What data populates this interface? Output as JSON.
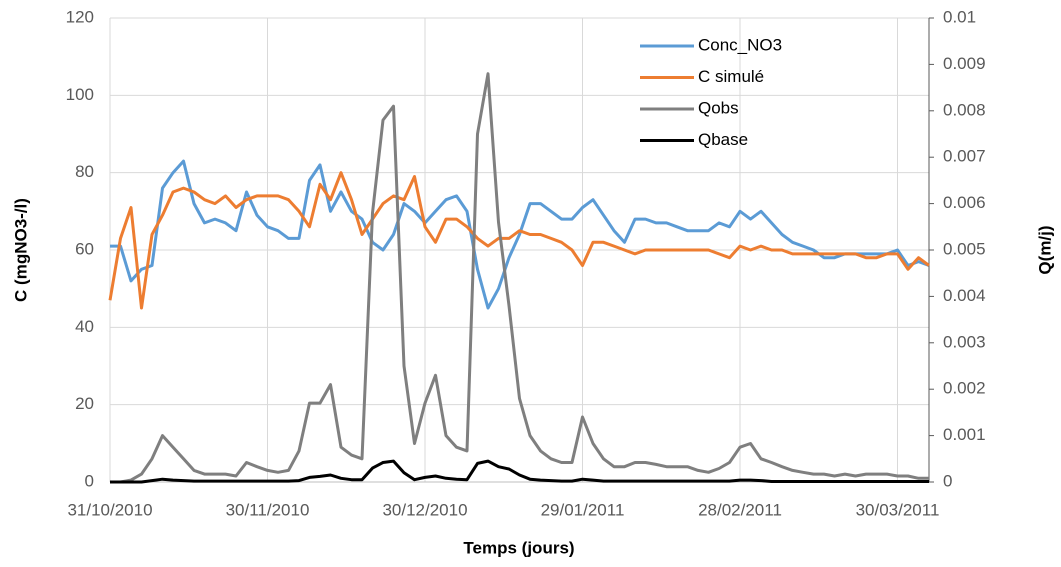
{
  "chart_data": {
    "type": "line",
    "xlabel": "Temps (jours)",
    "ylabel": "C (mgNO3-/l)",
    "y2label": "Q(m/j)",
    "x": [
      "31/10/2010",
      "02/11/2010",
      "04/11/2010",
      "06/11/2010",
      "08/11/2010",
      "10/11/2010",
      "12/11/2010",
      "14/11/2010",
      "16/11/2010",
      "18/11/2010",
      "20/11/2010",
      "22/11/2010",
      "24/11/2010",
      "26/11/2010",
      "28/11/2010",
      "30/11/2010",
      "02/12/2010",
      "04/12/2010",
      "06/12/2010",
      "08/12/2010",
      "10/12/2010",
      "12/12/2010",
      "14/12/2010",
      "16/12/2010",
      "18/12/2010",
      "20/12/2010",
      "22/12/2010",
      "24/12/2010",
      "26/12/2010",
      "28/12/2010",
      "30/12/2010",
      "01/01/2011",
      "03/01/2011",
      "05/01/2011",
      "07/01/2011",
      "09/01/2011",
      "11/01/2011",
      "13/01/2011",
      "15/01/2011",
      "17/01/2011",
      "19/01/2011",
      "21/01/2011",
      "23/01/2011",
      "25/01/2011",
      "27/01/2011",
      "29/01/2011",
      "31/01/2011",
      "02/02/2011",
      "04/02/2011",
      "06/02/2011",
      "08/02/2011",
      "10/02/2011",
      "12/02/2011",
      "14/02/2011",
      "16/02/2011",
      "18/02/2011",
      "20/02/2011",
      "22/02/2011",
      "24/02/2011",
      "26/02/2011",
      "28/02/2011",
      "02/03/2011",
      "04/03/2011",
      "06/03/2011",
      "08/03/2011",
      "10/03/2011",
      "12/03/2011",
      "14/03/2011",
      "16/03/2011",
      "18/03/2011",
      "20/03/2011",
      "22/03/2011",
      "24/03/2011",
      "26/03/2011",
      "28/03/2011",
      "30/03/2011",
      "01/04/2011",
      "03/04/2011",
      "05/04/2011"
    ],
    "xlim": [
      "31/10/2010",
      "05/04/2011"
    ],
    "xticks": [
      "31/10/2010",
      "30/11/2010",
      "30/12/2010",
      "29/01/2011",
      "28/02/2011",
      "30/03/2011"
    ],
    "ylim": [
      0,
      120
    ],
    "yticks": [
      0,
      20,
      40,
      60,
      80,
      100,
      120
    ],
    "y2lim": [
      0,
      0.01
    ],
    "y2ticks": [
      0,
      0.001,
      0.002,
      0.003,
      0.004,
      0.005,
      0.006,
      0.007,
      0.008,
      0.009,
      0.01
    ],
    "grid": true,
    "legend": "upper right",
    "series": [
      {
        "name": "Conc_NO3",
        "color": "#5b9bd5",
        "values": [
          61,
          61,
          52,
          55,
          56,
          76,
          80,
          83,
          72,
          67,
          68,
          67,
          65,
          75,
          69,
          66,
          65,
          63,
          63,
          78,
          82,
          70,
          75,
          70,
          68,
          62,
          60,
          64,
          72,
          70,
          67,
          70,
          73,
          74,
          70,
          55,
          45,
          50,
          58,
          64,
          72,
          72,
          70,
          68,
          68,
          71,
          73,
          69,
          65,
          62,
          68,
          68,
          67,
          67,
          66,
          65,
          65,
          65,
          67,
          66,
          70,
          68,
          70,
          67,
          64,
          62,
          61,
          60,
          58,
          58,
          59,
          59,
          59,
          59,
          59,
          60,
          56,
          57,
          56
        ]
      },
      {
        "name": "C simulé",
        "color": "#ed7d31",
        "values": [
          47,
          63,
          71,
          45,
          64,
          69,
          75,
          76,
          75,
          73,
          72,
          74,
          71,
          73,
          74,
          74,
          74,
          73,
          70,
          66,
          77,
          73,
          80,
          73,
          64,
          68,
          72,
          74,
          73,
          79,
          66,
          62,
          68,
          68,
          66,
          63,
          61,
          63,
          63,
          65,
          64,
          64,
          63,
          62,
          60,
          56,
          62,
          62,
          61,
          60,
          59,
          60,
          60,
          60,
          60,
          60,
          60,
          60,
          59,
          58,
          61,
          60,
          61,
          60,
          60,
          59,
          59,
          59,
          59,
          59,
          59,
          59,
          58,
          58,
          59,
          59,
          55,
          58,
          56
        ]
      },
      {
        "name": "Qobs",
        "color": "#7f7f7f",
        "axis": "y2",
        "values": [
          0,
          0,
          4e-05,
          0.00017,
          0.0005,
          0.001,
          0.00075,
          0.0005,
          0.00025,
          0.00017,
          0.00017,
          0.00017,
          0.00013,
          0.00042,
          0.00033,
          0.00025,
          0.00021,
          0.00025,
          0.00067,
          0.0017,
          0.0017,
          0.0021,
          0.00075,
          0.00058,
          0.0005,
          0.0058,
          0.0078,
          0.0081,
          0.0025,
          0.00083,
          0.0017,
          0.0023,
          0.001,
          0.00075,
          0.00067,
          0.0075,
          0.0088,
          0.0056,
          0.0038,
          0.0018,
          0.001,
          0.00067,
          0.0005,
          0.00042,
          0.00042,
          0.0014,
          0.00083,
          0.0005,
          0.00033,
          0.00033,
          0.00042,
          0.00042,
          0.00038,
          0.00033,
          0.00033,
          0.00033,
          0.00025,
          0.00021,
          0.00029,
          0.00042,
          0.00075,
          0.00083,
          0.0005,
          0.00042,
          0.00033,
          0.00025,
          0.00021,
          0.00017,
          0.00017,
          0.00013,
          0.00017,
          0.00013,
          0.00017,
          0.00017,
          0.00017,
          0.00013,
          0.00013,
          8e-05,
          8e-05
        ]
      },
      {
        "name": "Qbase",
        "color": "#000000",
        "axis": "y2",
        "values": [
          0,
          0,
          0,
          0,
          3e-05,
          6e-05,
          4e-05,
          3e-05,
          2e-05,
          2e-05,
          2e-05,
          2e-05,
          2e-05,
          2e-05,
          2e-05,
          2e-05,
          2e-05,
          2e-05,
          3e-05,
          0.0001,
          0.00012,
          0.00015,
          8e-05,
          5e-05,
          5e-05,
          0.0003,
          0.00042,
          0.00045,
          0.0002,
          5e-05,
          0.0001,
          0.00013,
          8e-05,
          6e-05,
          5e-05,
          0.0004,
          0.00045,
          0.00033,
          0.00028,
          0.00015,
          6e-05,
          4e-05,
          3e-05,
          2e-05,
          2e-05,
          6e-05,
          4e-05,
          2e-05,
          2e-05,
          2e-05,
          2e-05,
          2e-05,
          2e-05,
          2e-05,
          2e-05,
          2e-05,
          2e-05,
          2e-05,
          2e-05,
          2e-05,
          4e-05,
          4e-05,
          3e-05,
          1e-05,
          1e-05,
          1e-05,
          1e-05,
          1e-05,
          1e-05,
          1e-05,
          1e-05,
          1e-05,
          1e-05,
          1e-05,
          1e-05,
          1e-05,
          1e-05,
          1e-05,
          1e-05
        ]
      }
    ]
  }
}
